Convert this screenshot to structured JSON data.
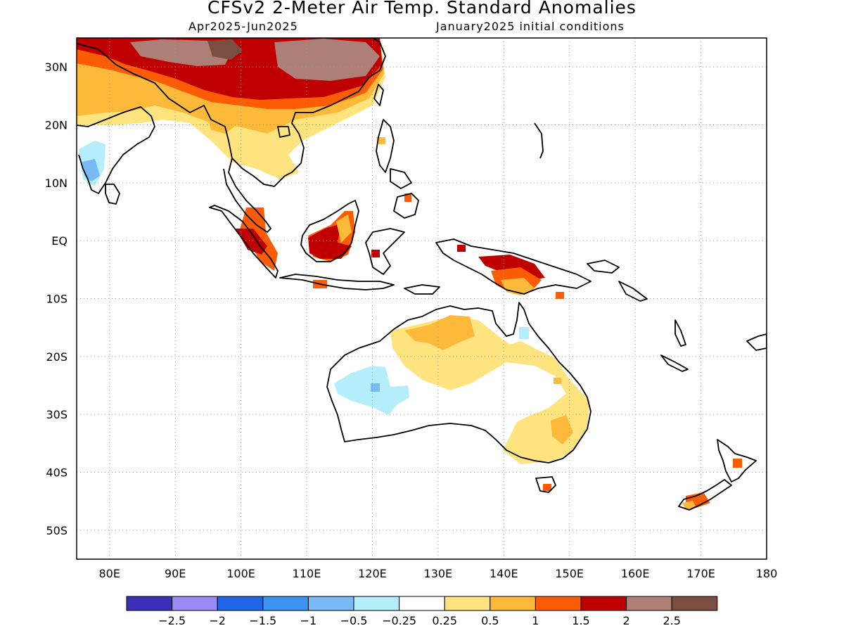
{
  "header": {
    "title": "CFSv2 2-Meter Air Temp. Standard Anomalies",
    "period": "Apr2025-Jun2025",
    "init": "January2025 initial conditions"
  },
  "axes": {
    "lat_labels": [
      "30N",
      "20N",
      "10N",
      "EQ",
      "10S",
      "20S",
      "30S",
      "40S",
      "50S"
    ],
    "lat_values": [
      30,
      20,
      10,
      0,
      -10,
      -20,
      -30,
      -40,
      -50
    ],
    "lon_labels": [
      "80E",
      "90E",
      "100E",
      "110E",
      "120E",
      "130E",
      "140E",
      "150E",
      "160E",
      "170E",
      "180"
    ],
    "lon_values": [
      80,
      90,
      100,
      110,
      120,
      130,
      140,
      150,
      160,
      170,
      180
    ],
    "lon_range": [
      75,
      180
    ],
    "lat_range": [
      -55,
      35
    ],
    "grid": "dotted"
  },
  "legend": {
    "colors": [
      "#3b2fb8",
      "#9a8bf4",
      "#1f66e8",
      "#3d93f2",
      "#78b9f6",
      "#b3eefa",
      "#ffffff",
      "#fee37e",
      "#fdb93a",
      "#fb5c05",
      "#c00000",
      "#ad7f77",
      "#7a4e41"
    ],
    "labels": [
      "-2.5",
      "-2",
      "-1.5",
      "-1",
      "-0.5",
      "-0.25",
      "0.25",
      "0.5",
      "1",
      "1.5",
      "2",
      "2.5"
    ]
  },
  "colors": {
    "land_outline": "#000000",
    "light_blue": "#b3eefa",
    "mid_blue": "#78b9f6",
    "blue": "#3d93f2",
    "yellow": "#fee37e",
    "orange": "#fdb93a",
    "dark_orange": "#fb5c05",
    "red": "#c00000",
    "brown": "#ad7f77",
    "dark_brown": "#7a4e41"
  }
}
